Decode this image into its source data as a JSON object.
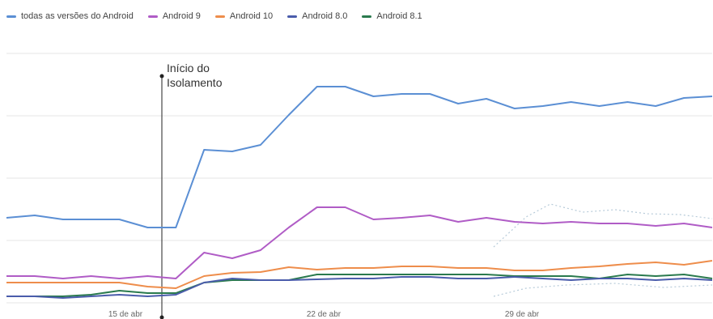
{
  "chart_data": {
    "type": "line",
    "title": "",
    "xlabel": "",
    "ylabel": "",
    "x_ticks": [
      "15 de abr",
      "22 de abr",
      "29 de abr"
    ],
    "annotation": {
      "line1": "Início do",
      "line2": "Isolamento"
    },
    "grid": true,
    "legend": "top-left",
    "series": [
      {
        "name": "todas as versões do Android",
        "color": "#5b8fd4",
        "values": [
          269,
          266,
          271,
          271,
          271,
          281,
          281,
          185,
          187,
          179,
          142,
          107,
          107,
          119,
          116,
          116,
          128,
          122,
          134,
          131,
          126,
          131,
          126,
          131,
          121,
          119
        ]
      },
      {
        "name": "Android 9",
        "color": "#b05cc6",
        "values": [
          341,
          341,
          344,
          341,
          344,
          341,
          344,
          312,
          319,
          309,
          281,
          256,
          256,
          271,
          269,
          266,
          274,
          269,
          274,
          276,
          274,
          276,
          276,
          279,
          276,
          281
        ]
      },
      {
        "name": "Android 10",
        "color": "#ee8d4b",
        "values": [
          349,
          349,
          349,
          349,
          349,
          354,
          356,
          341,
          337,
          336,
          330,
          333,
          331,
          331,
          329,
          329,
          331,
          331,
          334,
          334,
          331,
          329,
          326,
          324,
          327,
          322
        ]
      },
      {
        "name": "Android 8.0",
        "color": "#4a5cab",
        "values": [
          366,
          366,
          368,
          366,
          364,
          366,
          364,
          349,
          344,
          346,
          346,
          345,
          344,
          344,
          342,
          342,
          344,
          344,
          342,
          344,
          346,
          344,
          344,
          346,
          344,
          346
        ]
      },
      {
        "name": "Android 8.1",
        "color": "#2a7a4e",
        "values": [
          366,
          366,
          366,
          364,
          359,
          362,
          362,
          349,
          346,
          346,
          346,
          339,
          339,
          339,
          339,
          339,
          339,
          339,
          341,
          341,
          341,
          344,
          339,
          341,
          339,
          344
        ]
      }
    ]
  }
}
